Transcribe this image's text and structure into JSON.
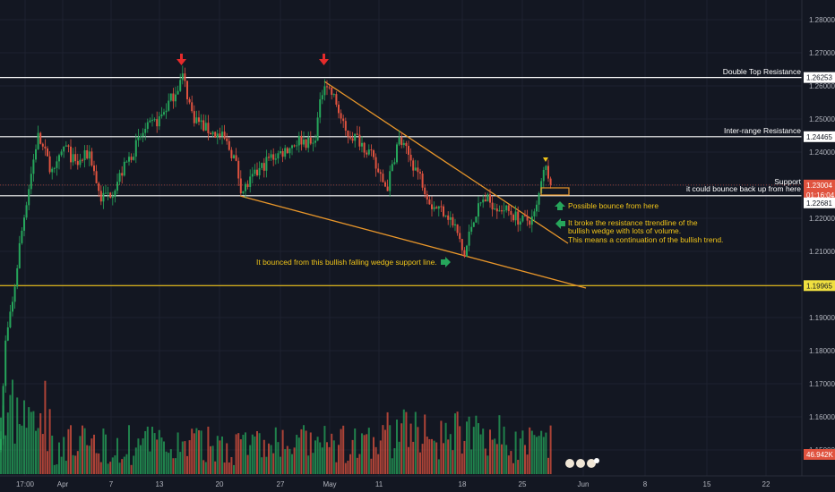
{
  "chart_data": {
    "type": "candlestick",
    "symbol_note": "",
    "price_axis": {
      "ticks": [
        "1.28000",
        "1.27000",
        "1.26000",
        "1.25000",
        "1.24000",
        "1.23000",
        "1.22000",
        "1.21000",
        "1.20000",
        "1.19000",
        "1.18000",
        "1.17000",
        "1.16000",
        "1.15000"
      ],
      "ylim": [
        1.1444,
        1.288
      ]
    },
    "time_axis": {
      "ticks": [
        "17:00",
        "Apr",
        "7",
        "13",
        "20",
        "27",
        "May",
        "11",
        "18",
        "25",
        "Jun",
        "8",
        "15",
        "22"
      ]
    },
    "price_labels": [
      {
        "name": "double-top-price",
        "value": "1.26253",
        "style": "white"
      },
      {
        "name": "inter-range-price",
        "value": "1.24465",
        "style": "white"
      },
      {
        "name": "current-price",
        "value": "1.23004",
        "style": "red"
      },
      {
        "name": "countdown",
        "value": "01:16:04",
        "style": "red"
      },
      {
        "name": "support-price",
        "value": "1.22681",
        "style": "white"
      },
      {
        "name": "wedge-support-price",
        "value": "1.19965",
        "style": "yellow"
      },
      {
        "name": "volume-value",
        "value": "46.942K",
        "style": "red"
      }
    ],
    "levels": [
      {
        "name": "double-top-resistance",
        "price": 1.26253,
        "color": "#ffffff"
      },
      {
        "name": "inter-range-resistance",
        "price": 1.24465,
        "color": "#ffffff"
      },
      {
        "name": "support",
        "price": 1.22681,
        "color": "#ffffff"
      },
      {
        "name": "wedge-support-level",
        "price": 1.19965,
        "color": "#f0c419"
      },
      {
        "name": "current-price-line",
        "price": 1.23004,
        "color": "#e0533f",
        "dashed": true
      }
    ],
    "annotations": {
      "double_top": "Double Top Resistance",
      "inter_range": "Inter-range Resistance",
      "support_line1": "Support",
      "support_line2": "it could bounce back up from here",
      "possible_bounce": "Possible bounce from here",
      "breakout_line1": "It broke the resistance ttrendline of the",
      "breakout_line2": "bullish wedge with lots of volume.",
      "breakout_line3": "This means a continuation of the bullish trend.",
      "wedge_bounce": "It bounced from this bullish falling wedge support line."
    },
    "colors": {
      "background": "#131722",
      "up": "#26a65b",
      "down": "#e0533f",
      "trendline": "#e8962a",
      "annotation_text": "#f0c419",
      "marker_arrow": "#e52b2b",
      "grid": "#1e2230"
    },
    "candles_description": "approximate hourly OHLC path rising from ~1.19 to a double top near 1.263, falling in a wedge to ~1.208, then breaking out to ~1.236"
  }
}
